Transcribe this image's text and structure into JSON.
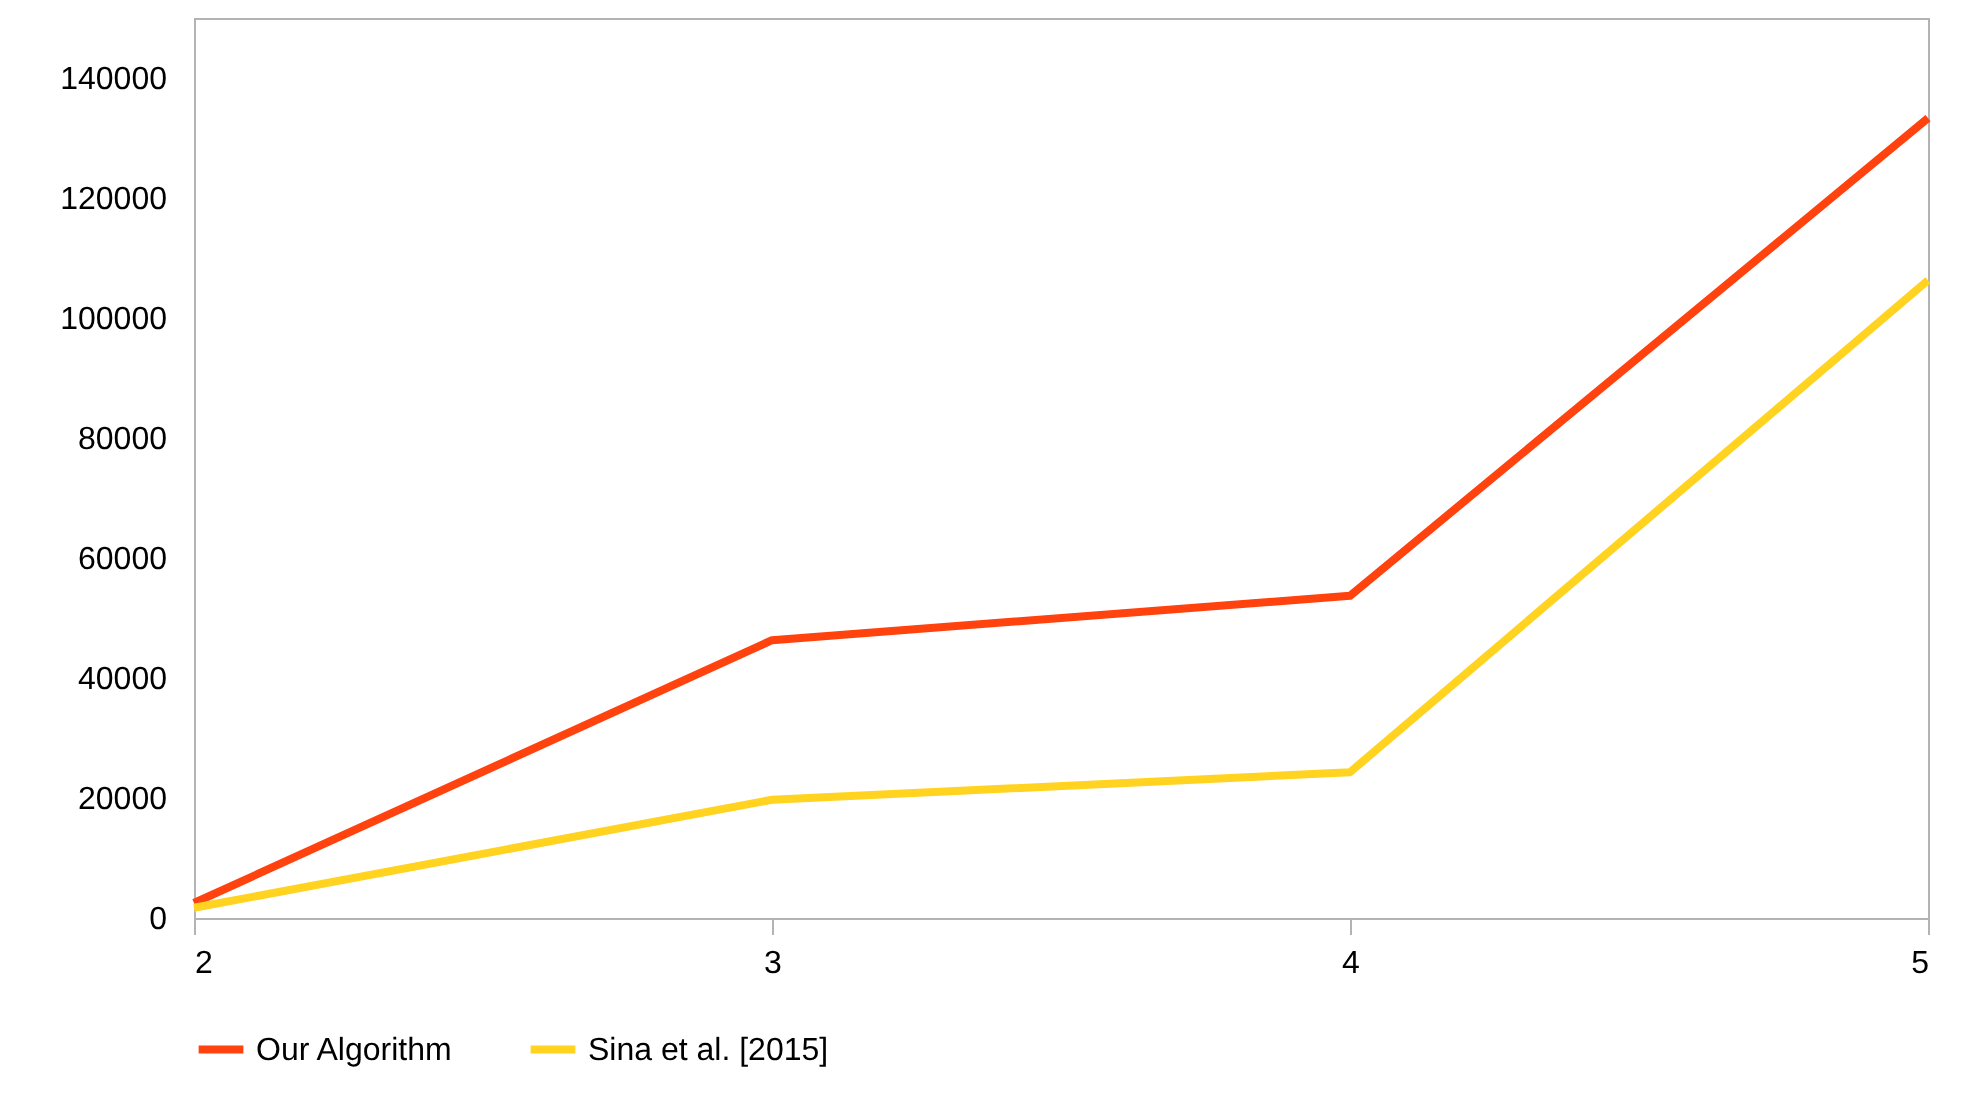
{
  "chart_data": {
    "type": "line",
    "x": [
      2,
      3,
      4,
      5
    ],
    "series": [
      {
        "name": "Our Algorithm",
        "color": "#ff420e",
        "values": [
          2500,
          46300,
          53700,
          133300
        ]
      },
      {
        "name": "Sina et al. [2015]",
        "color": "#ffd320",
        "values": [
          1700,
          19700,
          24300,
          106300
        ]
      }
    ],
    "xlim": [
      2,
      5
    ],
    "xticks": [
      2,
      3,
      4,
      5
    ],
    "ylim": [
      0,
      150000
    ],
    "yticks": [
      0,
      20000,
      40000,
      60000,
      80000,
      100000,
      120000,
      140000
    ],
    "grid": false,
    "legend": "bottom",
    "marker": "none",
    "line_style": "solid"
  }
}
